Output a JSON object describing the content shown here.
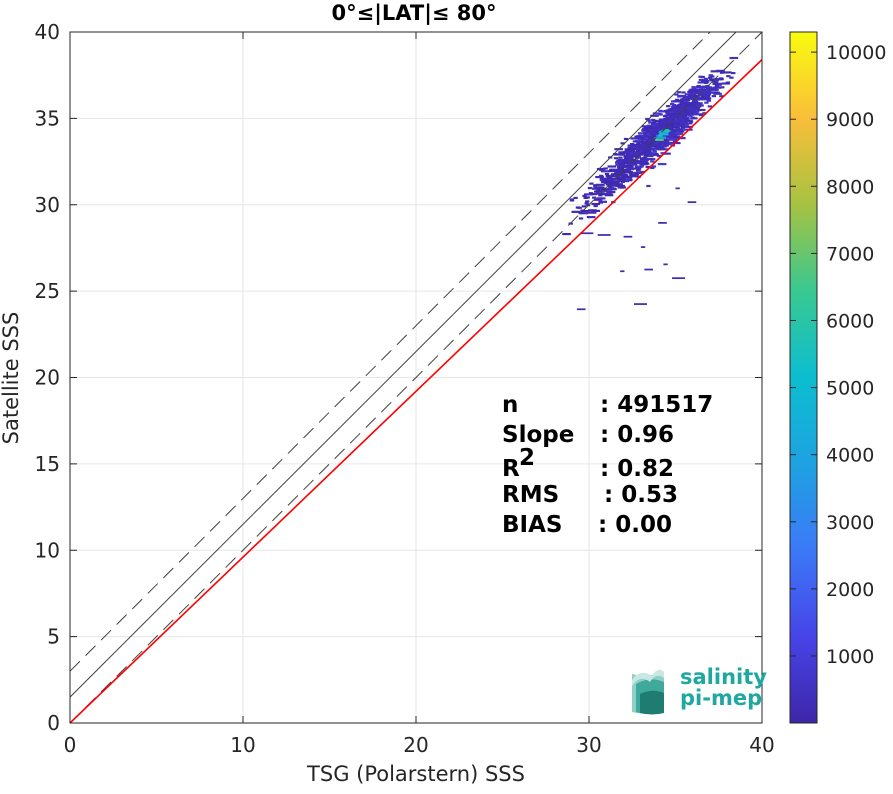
{
  "chart_data": {
    "type": "heatmap",
    "title": "0°≤|LAT|≤ 80°",
    "xlabel": "TSG (Polarstern) SSS",
    "ylabel": "Satellite SSS",
    "xlim": [
      0,
      40
    ],
    "ylim": [
      0,
      40
    ],
    "xticks": [
      "0",
      "10",
      "20",
      "30",
      "40"
    ],
    "yticks": [
      "0",
      "5",
      "10",
      "15",
      "20",
      "25",
      "30",
      "35",
      "40"
    ],
    "grid": true,
    "lines": [
      {
        "name": "identity",
        "color": "#404040",
        "style": "solid",
        "slope": 1,
        "intercept": 1.5
      },
      {
        "name": "upper",
        "color": "#404040",
        "style": "dashed",
        "slope": 1,
        "intercept": 3
      },
      {
        "name": "lower",
        "color": "#404040",
        "style": "dashed",
        "slope": 1,
        "intercept": 0
      },
      {
        "name": "fit",
        "color": "#ff0000",
        "style": "solid",
        "slope": 0.96,
        "intercept": 0.0
      }
    ],
    "stats": [
      {
        "label": "n",
        "value": ": 491517"
      },
      {
        "label": "Slope",
        "value": ": 0.96"
      },
      {
        "label": "R",
        "sup": "2",
        "value": ": 0.82"
      },
      {
        "label": "RMS",
        "value": ": 0.53"
      },
      {
        "label": "BIAS",
        "value": ": 0.00"
      }
    ],
    "colorbar": {
      "min": 1,
      "max": 10300,
      "ticks": [
        "1000",
        "2000",
        "3000",
        "4000",
        "5000",
        "6000",
        "7000",
        "8000",
        "9000",
        "10000"
      ],
      "colormap": "parula"
    },
    "density_clusters": [
      {
        "x": 34.0,
        "y": 34.2,
        "sx": 1.2,
        "sy": 1.1,
        "count": 520,
        "level": 0.06
      },
      {
        "x": 35.5,
        "y": 35.6,
        "sx": 1.0,
        "sy": 0.9,
        "count": 320,
        "level": 0.04
      },
      {
        "x": 32.5,
        "y": 33.0,
        "sx": 1.2,
        "sy": 0.8,
        "count": 260,
        "level": 0.03
      },
      {
        "x": 31.0,
        "y": 31.2,
        "sx": 1.0,
        "sy": 0.9,
        "count": 90,
        "level": 0.02
      },
      {
        "x": 34.1,
        "y": 34.2,
        "sx": 0.15,
        "sy": 0.15,
        "count": 12,
        "level": 0.5
      }
    ],
    "outliers": [
      {
        "x": 29.5,
        "y": 28.4
      },
      {
        "x": 30.5,
        "y": 28.3
      },
      {
        "x": 32.0,
        "y": 28.2
      },
      {
        "x": 33.0,
        "y": 27.6
      },
      {
        "x": 31.8,
        "y": 26.2
      },
      {
        "x": 33.2,
        "y": 26.3
      },
      {
        "x": 34.3,
        "y": 26.6
      },
      {
        "x": 34.8,
        "y": 25.8
      },
      {
        "x": 29.3,
        "y": 24.0
      },
      {
        "x": 32.6,
        "y": 24.3
      },
      {
        "x": 34.0,
        "y": 29.0
      },
      {
        "x": 35.7,
        "y": 30.2
      },
      {
        "x": 35.0,
        "y": 31.0
      }
    ]
  },
  "logo": {
    "line1": "salinity",
    "line2": "pi-mep"
  }
}
